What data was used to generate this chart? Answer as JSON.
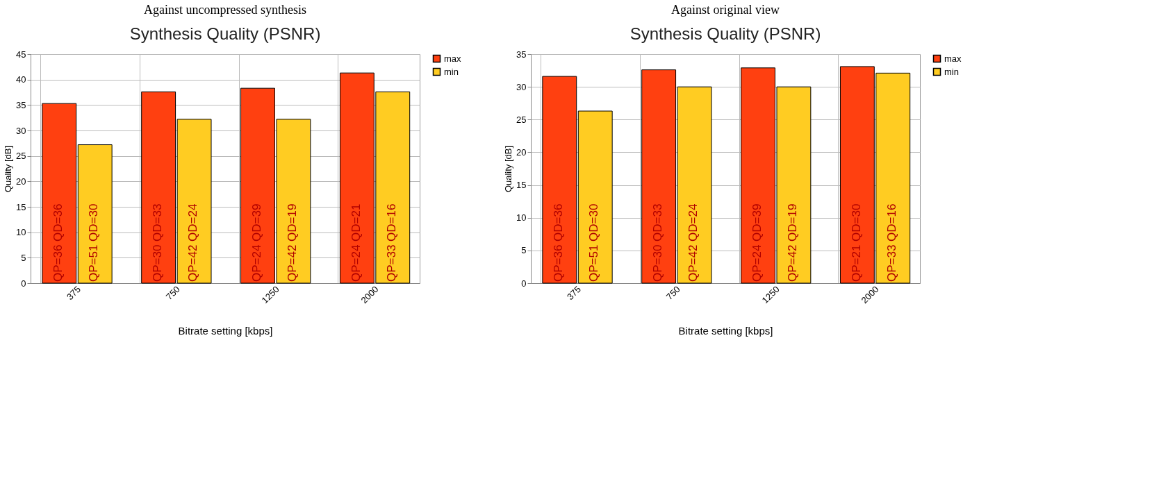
{
  "chart_data": [
    {
      "type": "bar",
      "title": "Against uncompressed synthesis",
      "subtitle": "Synthesis Quality (PSNR)",
      "xlabel": "Bitrate setting [kbps]",
      "ylabel": "Quality [dB]",
      "categories": [
        "375",
        "750",
        "1250",
        "2000"
      ],
      "ylim": [
        0,
        45
      ],
      "yticks": [
        0,
        5,
        10,
        15,
        20,
        25,
        30,
        35,
        40,
        45
      ],
      "grid": true,
      "legend": "right",
      "series": [
        {
          "name": "max",
          "color": "#ff4010",
          "values": [
            35.3,
            37.6,
            38.3,
            41.3
          ],
          "value_labels": [
            "QP=36 QD=36",
            "QP=30 QD=33",
            "QP=24 QD=39",
            "QP=24 QD=21"
          ]
        },
        {
          "name": "min",
          "color": "#ffcc22",
          "values": [
            27.2,
            32.2,
            32.2,
            37.6
          ],
          "value_labels": [
            "QP=51 QD=30",
            "QP=42 QD=24",
            "QP=42 QD=19",
            "QP=33 QD=16"
          ]
        }
      ]
    },
    {
      "type": "bar",
      "title": "Against original view",
      "subtitle": "Synthesis Quality (PSNR)",
      "xlabel": "Bitrate setting [kbps]",
      "ylabel": "Quality [dB]",
      "categories": [
        "375",
        "750",
        "1250",
        "2000"
      ],
      "ylim": [
        0,
        35
      ],
      "yticks": [
        0,
        5,
        10,
        15,
        20,
        25,
        30,
        35
      ],
      "grid": true,
      "legend": "right",
      "series": [
        {
          "name": "max",
          "color": "#ff4010",
          "values": [
            31.6,
            32.6,
            32.9,
            33.1
          ],
          "value_labels": [
            "QP=36 QD=36",
            "QP=30 QD=33",
            "QP=24 QD=39",
            "QP=21 QD=30"
          ]
        },
        {
          "name": "min",
          "color": "#ffcc22",
          "values": [
            26.3,
            30.0,
            30.0,
            32.1
          ],
          "value_labels": [
            "QP=51 QD=30",
            "QP=42 QD=24",
            "QP=42 QD=19",
            "QP=33 QD=16"
          ]
        }
      ]
    }
  ]
}
